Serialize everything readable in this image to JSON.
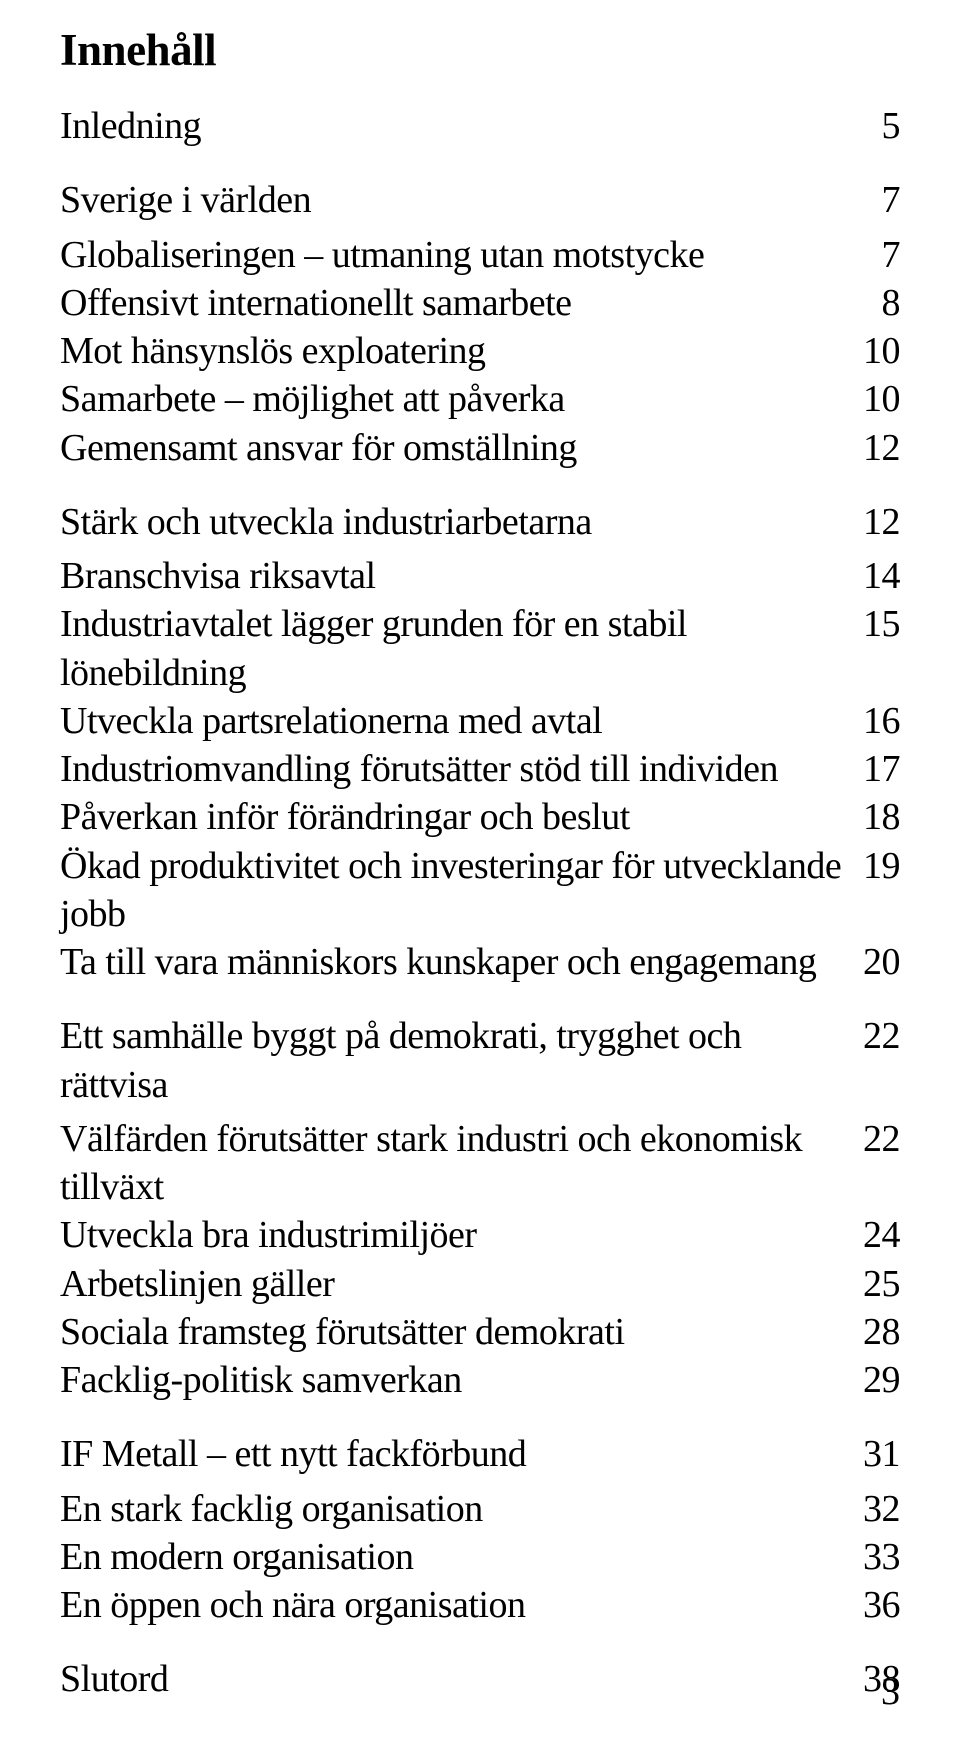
{
  "title": "Innehåll",
  "sections": [
    {
      "heading": "Inledning",
      "heading_page": "5",
      "items": []
    },
    {
      "heading": "Sverige i världen",
      "heading_page": "7",
      "items": [
        {
          "label": "Globaliseringen – utmaning utan motstycke",
          "page": "7"
        },
        {
          "label": "Offensivt internationellt samarbete",
          "page": "8"
        },
        {
          "label": "Mot hänsynslös exploatering",
          "page": "10"
        },
        {
          "label": "Samarbete – möjlighet att påverka",
          "page": "10"
        },
        {
          "label": "Gemensamt ansvar för omställning",
          "page": "12"
        }
      ]
    },
    {
      "heading": "Stärk och utveckla industriarbetarna",
      "heading_page": "12",
      "items": [
        {
          "label": "Branschvisa riksavtal",
          "page": "14"
        },
        {
          "label": "Industriavtalet lägger grunden för en stabil lönebildning",
          "page": "15"
        },
        {
          "label": "Utveckla partsrelationerna med avtal",
          "page": "16"
        },
        {
          "label": "Industriomvandling förutsätter stöd till individen",
          "page": "17"
        },
        {
          "label": "Påverkan inför förändringar och beslut",
          "page": "18"
        },
        {
          "label": "Ökad produktivitet och investeringar för utvecklande jobb",
          "page": "19"
        },
        {
          "label": "Ta till vara människors kunskaper och engagemang",
          "page": "20"
        }
      ]
    },
    {
      "heading": "Ett samhälle byggt på demokrati, trygghet och rättvisa",
      "heading_page": "22",
      "items": [
        {
          "label": "Välfärden förutsätter stark industri och ekonomisk tillväxt",
          "page": "22"
        },
        {
          "label": "Utveckla bra industrimiljöer",
          "page": "24"
        },
        {
          "label": "Arbetslinjen gäller",
          "page": "25"
        },
        {
          "label": "Sociala framsteg förutsätter demokrati",
          "page": "28"
        },
        {
          "label": "Facklig-politisk samverkan",
          "page": "29"
        }
      ]
    },
    {
      "heading": "IF Metall – ett nytt fackförbund",
      "heading_page": "31",
      "items": [
        {
          "label": "En stark facklig organisation",
          "page": "32"
        },
        {
          "label": "En modern organisation",
          "page": "33"
        },
        {
          "label": "En öppen och nära organisation",
          "page": "36"
        }
      ]
    },
    {
      "heading": "Slutord",
      "heading_page": "38",
      "items": []
    }
  ],
  "footer_page_number": "3"
}
